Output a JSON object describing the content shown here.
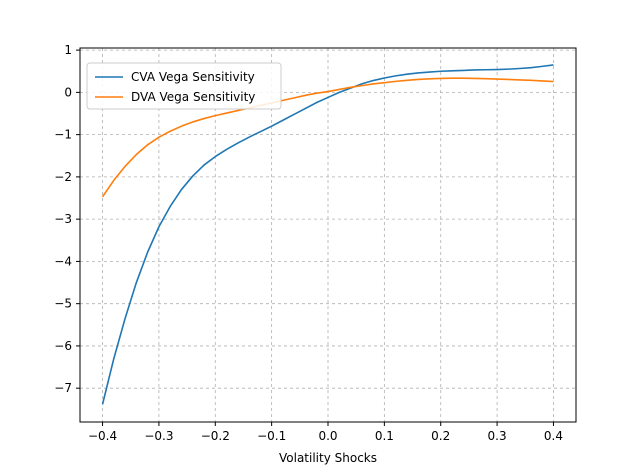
{
  "chart_data": {
    "type": "line",
    "title": "",
    "xlabel": "Volatility Shocks",
    "ylabel": "",
    "xlim": [
      -0.44,
      0.44
    ],
    "ylim": [
      -7.8,
      1.05
    ],
    "xticks": [
      -0.4,
      -0.3,
      -0.2,
      -0.1,
      0.0,
      0.1,
      0.2,
      0.3,
      0.4
    ],
    "xtick_labels": [
      "−0.4",
      "−0.3",
      "−0.2",
      "−0.1",
      "0.0",
      "0.1",
      "0.2",
      "0.3",
      "0.4"
    ],
    "yticks": [
      1,
      0,
      -1,
      -2,
      -3,
      -4,
      -5,
      -6,
      -7
    ],
    "ytick_labels": [
      "1",
      "0",
      "−1",
      "−2",
      "−3",
      "−4",
      "−5",
      "−6",
      "−7"
    ],
    "grid": true,
    "legend_position": "upper-left",
    "series": [
      {
        "name": "CVA Vega Sensitivity",
        "color": "#1f77b4",
        "x": [
          -0.4,
          -0.38,
          -0.36,
          -0.34,
          -0.32,
          -0.3,
          -0.28,
          -0.26,
          -0.24,
          -0.22,
          -0.2,
          -0.18,
          -0.16,
          -0.14,
          -0.12,
          -0.1,
          -0.08,
          -0.06,
          -0.04,
          -0.02,
          0.0,
          0.02,
          0.04,
          0.06,
          0.08,
          0.1,
          0.12,
          0.14,
          0.16,
          0.18,
          0.2,
          0.22,
          0.24,
          0.26,
          0.28,
          0.3,
          0.32,
          0.34,
          0.36,
          0.38,
          0.4
        ],
        "y": [
          -7.38,
          -6.3,
          -5.35,
          -4.5,
          -3.78,
          -3.18,
          -2.7,
          -2.3,
          -1.98,
          -1.72,
          -1.52,
          -1.35,
          -1.2,
          -1.06,
          -0.93,
          -0.8,
          -0.66,
          -0.52,
          -0.38,
          -0.24,
          -0.12,
          0.0,
          0.1,
          0.2,
          0.28,
          0.34,
          0.39,
          0.43,
          0.46,
          0.48,
          0.5,
          0.51,
          0.52,
          0.53,
          0.535,
          0.54,
          0.55,
          0.565,
          0.585,
          0.615,
          0.65
        ]
      },
      {
        "name": "DVA Vega Sensitivity",
        "color": "#ff7f0e",
        "x": [
          -0.4,
          -0.38,
          -0.36,
          -0.34,
          -0.32,
          -0.3,
          -0.28,
          -0.26,
          -0.24,
          -0.22,
          -0.2,
          -0.18,
          -0.16,
          -0.14,
          -0.12,
          -0.1,
          -0.08,
          -0.06,
          -0.04,
          -0.02,
          0.0,
          0.02,
          0.04,
          0.06,
          0.08,
          0.1,
          0.12,
          0.14,
          0.16,
          0.18,
          0.2,
          0.22,
          0.24,
          0.26,
          0.28,
          0.3,
          0.32,
          0.34,
          0.36,
          0.38,
          0.4
        ],
        "y": [
          -2.47,
          -2.08,
          -1.75,
          -1.47,
          -1.24,
          -1.06,
          -0.92,
          -0.8,
          -0.7,
          -0.62,
          -0.55,
          -0.49,
          -0.43,
          -0.37,
          -0.31,
          -0.25,
          -0.19,
          -0.13,
          -0.07,
          -0.02,
          0.02,
          0.07,
          0.12,
          0.16,
          0.2,
          0.23,
          0.26,
          0.285,
          0.305,
          0.32,
          0.33,
          0.335,
          0.335,
          0.33,
          0.325,
          0.315,
          0.305,
          0.295,
          0.285,
          0.27,
          0.255
        ]
      }
    ]
  }
}
